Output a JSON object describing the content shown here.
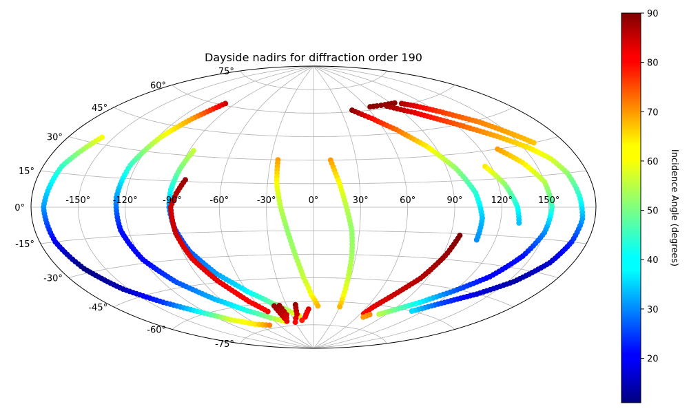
{
  "chart_data": {
    "type": "scatter",
    "projection": "aitoff",
    "title": "Dayside nadirs for diffraction order 190",
    "lon_ticks": [
      -150,
      -120,
      -90,
      -60,
      -30,
      0,
      30,
      60,
      90,
      120,
      150
    ],
    "lat_ticks": [
      -75,
      -60,
      -45,
      -30,
      -15,
      0,
      15,
      30,
      45,
      60,
      75
    ],
    "lon_tick_labels": [
      "-150°",
      "-120°",
      "-90°",
      "-60°",
      "-30°",
      "0°",
      "30°",
      "60°",
      "90°",
      "120°",
      "150°"
    ],
    "lat_tick_labels": [
      "-75°",
      "-60°",
      "-45°",
      "-30°",
      "-15°",
      "0°",
      "15°",
      "30°",
      "45°",
      "60°",
      "75°"
    ],
    "grid": true,
    "colormap": "jet",
    "colorbar": {
      "label": "Incidence Angle (degrees)",
      "range": [
        11,
        90
      ],
      "ticks": [
        20,
        30,
        40,
        50,
        60,
        70,
        80,
        90
      ],
      "tick_labels": [
        "20",
        "30",
        "40",
        "50",
        "60",
        "70",
        "80",
        "90"
      ]
    },
    "tracks": [
      {
        "points": [
          [
            -158,
            33,
            60
          ],
          [
            -168,
            18,
            45
          ],
          [
            -172,
            0,
            33
          ],
          [
            -170,
            -15,
            20
          ],
          [
            -164,
            -28,
            11
          ],
          [
            -154,
            -40,
            15
          ],
          [
            -140,
            -50,
            25
          ],
          [
            -126,
            -58,
            40
          ],
          [
            -110,
            -66,
            58
          ],
          [
            -92,
            -71,
            62
          ],
          [
            -75,
            -73,
            70
          ]
        ]
      },
      {
        "points": [
          [
            -100,
            61,
            84
          ],
          [
            -110,
            50,
            68
          ],
          [
            -118,
            38,
            58
          ],
          [
            -124,
            22,
            45
          ],
          [
            -126,
            5,
            33
          ],
          [
            -125,
            -12,
            22
          ],
          [
            -120,
            -28,
            20
          ],
          [
            -110,
            -42,
            27
          ],
          [
            -95,
            -54,
            35
          ],
          [
            -78,
            -63,
            43
          ],
          [
            -60,
            -69,
            52
          ],
          [
            -45,
            -72,
            60
          ]
        ]
      },
      {
        "points": [
          [
            -87,
            33,
            56
          ],
          [
            -90,
            22,
            50
          ],
          [
            -92,
            10,
            42
          ],
          [
            -92,
            0,
            32
          ],
          [
            -90,
            -12,
            26
          ],
          [
            -85,
            -26,
            28
          ],
          [
            -75,
            -40,
            33
          ],
          [
            -60,
            -52,
            40
          ],
          [
            -45,
            -60,
            48
          ],
          [
            -30,
            -66,
            55
          ],
          [
            -20,
            -69,
            62
          ]
        ]
      },
      {
        "points": [
          [
            -84,
            16,
            88
          ],
          [
            -88,
            8,
            86
          ],
          [
            -91,
            0,
            84
          ],
          [
            -90,
            -15,
            84
          ],
          [
            -86,
            -30,
            82
          ],
          [
            -78,
            -44,
            82
          ],
          [
            -66,
            -58,
            80
          ],
          [
            -56,
            -65,
            80
          ]
        ]
      },
      {
        "points": [
          [
            -44,
            -62,
            88
          ],
          [
            -42,
            -70,
            84
          ]
        ]
      },
      {
        "points": [
          [
            -38,
            -62,
            88
          ],
          [
            -36,
            -68,
            84
          ],
          [
            -42,
            -72,
            82
          ]
        ]
      },
      {
        "points": [
          [
            -20,
            -62,
            88
          ],
          [
            -22,
            -68,
            84
          ],
          [
            -30,
            -73,
            80
          ]
        ]
      },
      {
        "points": [
          [
            -6,
            -65,
            82
          ],
          [
            -12,
            -70,
            80
          ],
          [
            -18,
            -72,
            78
          ]
        ]
      },
      {
        "points": [
          [
            -25,
            30,
            68
          ],
          [
            -24,
            15,
            60
          ],
          [
            -21,
            0,
            55
          ],
          [
            -17,
            -15,
            52
          ],
          [
            -13,
            -30,
            53
          ],
          [
            -8,
            -45,
            56
          ],
          [
            -2,
            -56,
            60
          ],
          [
            5,
            -63,
            66
          ]
        ]
      },
      {
        "points": [
          [
            12,
            30,
            68
          ],
          [
            17,
            15,
            60
          ],
          [
            21,
            0,
            55
          ],
          [
            25,
            -15,
            52
          ],
          [
            27,
            -30,
            53
          ],
          [
            28,
            -45,
            56
          ],
          [
            29,
            -56,
            60
          ],
          [
            30,
            -63,
            66
          ]
        ]
      },
      {
        "points": [
          [
            42,
            61,
            89
          ],
          [
            56,
            55,
            80
          ],
          [
            70,
            47,
            72
          ],
          [
            84,
            36,
            62
          ],
          [
            96,
            22,
            52
          ],
          [
            104,
            8,
            44
          ],
          [
            108,
            -6,
            36
          ],
          [
            108,
            -18,
            32
          ]
        ]
      },
      {
        "points": [
          [
            64,
            62,
            89
          ],
          [
            72,
            62,
            89
          ],
          [
            82,
            62,
            89
          ],
          [
            94,
            62,
            89
          ]
        ]
      },
      {
        "points": [
          [
            82,
            61,
            88
          ],
          [
            100,
            55,
            82
          ],
          [
            120,
            46,
            74
          ],
          [
            140,
            36,
            67
          ],
          [
            154,
            28,
            62
          ],
          [
            162,
            22,
            58
          ],
          [
            167,
            15,
            52
          ],
          [
            170,
            5,
            44
          ],
          [
            172,
            -5,
            34
          ],
          [
            170,
            -15,
            24
          ],
          [
            165,
            -25,
            17
          ],
          [
            154,
            -36,
            14
          ],
          [
            140,
            -45,
            18
          ],
          [
            124,
            -53,
            26
          ],
          [
            110,
            -60,
            38
          ]
        ]
      },
      {
        "points": [
          [
            100,
            61,
            86
          ],
          [
            110,
            58,
            82
          ],
          [
            122,
            53,
            76
          ],
          [
            140,
            44,
            70
          ],
          [
            160,
            30,
            65
          ]
        ]
      },
      {
        "points": [
          [
            132,
            30,
            68
          ],
          [
            142,
            22,
            62
          ],
          [
            150,
            12,
            55
          ],
          [
            152,
            0,
            45
          ],
          [
            150,
            -12,
            32
          ],
          [
            144,
            -24,
            22
          ],
          [
            134,
            -36,
            20
          ],
          [
            120,
            -46,
            28
          ],
          [
            105,
            -55,
            40
          ],
          [
            90,
            -62,
            50
          ],
          [
            82,
            -65,
            55
          ]
        ]
      },
      {
        "points": [
          [
            116,
            22,
            62
          ],
          [
            124,
            12,
            52
          ],
          [
            130,
            0,
            42
          ],
          [
            132,
            -8,
            36
          ]
        ]
      },
      {
        "points": [
          [
            96,
            -16,
            90
          ],
          [
            92,
            -28,
            88
          ],
          [
            85,
            -42,
            86
          ],
          [
            74,
            -54,
            84
          ],
          [
            66,
            -62,
            82
          ],
          [
            64,
            -66,
            80
          ]
        ]
      },
      {
        "points": [
          [
            72,
            -66,
            70
          ],
          [
            68,
            -68,
            68
          ]
        ]
      }
    ]
  }
}
